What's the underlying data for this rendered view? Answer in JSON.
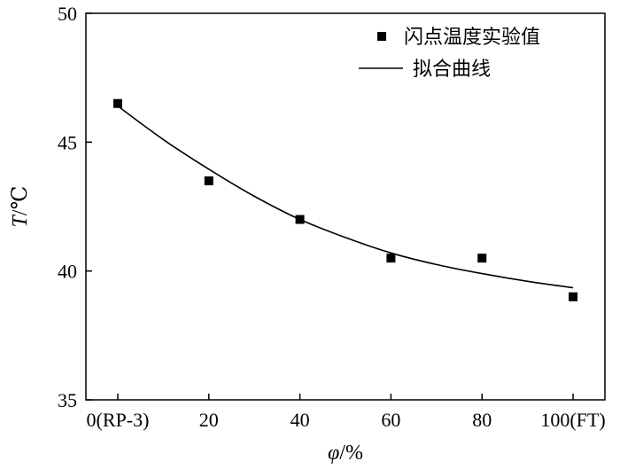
{
  "chart_data": {
    "type": "scatter",
    "x_tick_labels": [
      "0(RP-3)",
      "20",
      "40",
      "60",
      "80",
      "100(FT)"
    ],
    "x_ticks": [
      0,
      20,
      40,
      60,
      80,
      100
    ],
    "y_ticks": [
      35,
      40,
      45,
      50
    ],
    "xlim": [
      -7,
      107
    ],
    "ylim": [
      35,
      50
    ],
    "xlabel": {
      "main": "φ",
      "unit": "/%"
    },
    "ylabel": {
      "main": "T",
      "unit": "/℃"
    },
    "legend_position": "top-right",
    "grid": false,
    "series": [
      {
        "name": "闪点温度实验值",
        "type": "scatter",
        "marker": "square",
        "color": "#000000",
        "points": [
          {
            "x": 0,
            "y": 46.5
          },
          {
            "x": 20,
            "y": 43.5
          },
          {
            "x": 40,
            "y": 42.0
          },
          {
            "x": 60,
            "y": 40.5
          },
          {
            "x": 80,
            "y": 40.5
          },
          {
            "x": 100,
            "y": 39.0
          }
        ]
      },
      {
        "name": "拟合曲线",
        "type": "line",
        "color": "#000000",
        "points": [
          {
            "x": 0,
            "y": 46.4
          },
          {
            "x": 10,
            "y": 45.1
          },
          {
            "x": 20,
            "y": 43.95
          },
          {
            "x": 30,
            "y": 42.9
          },
          {
            "x": 40,
            "y": 42.0
          },
          {
            "x": 50,
            "y": 41.3
          },
          {
            "x": 60,
            "y": 40.7
          },
          {
            "x": 70,
            "y": 40.25
          },
          {
            "x": 80,
            "y": 39.9
          },
          {
            "x": 90,
            "y": 39.6
          },
          {
            "x": 100,
            "y": 39.35
          }
        ]
      }
    ]
  }
}
